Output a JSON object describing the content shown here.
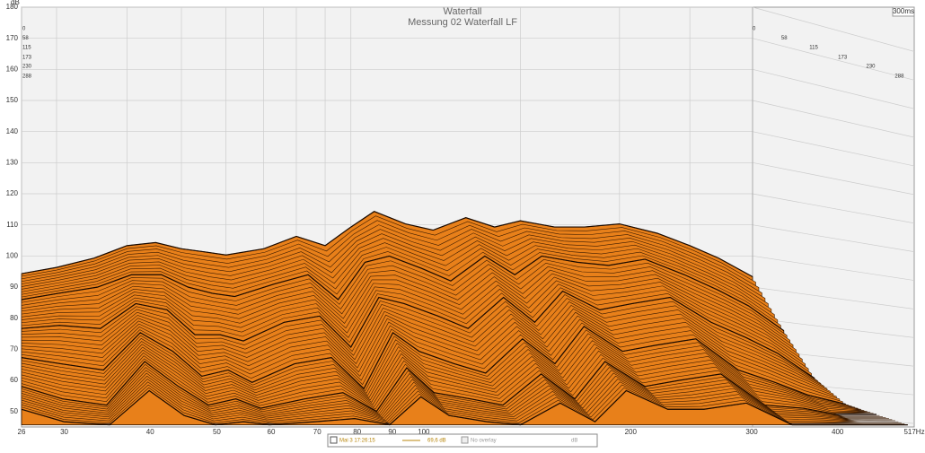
{
  "chart_data": {
    "type": "waterfall",
    "title": "Waterfall",
    "subtitle": "Messung 02 Waterfall LF",
    "y_label": "dB",
    "z_label": "300ms",
    "color": "#e8801a",
    "xscale": "log",
    "grid": true,
    "x": [
      26,
      30,
      35,
      40,
      45,
      50,
      55,
      60,
      70,
      80,
      90,
      100,
      110,
      125,
      140,
      160,
      180,
      200,
      230,
      260,
      300,
      350,
      400,
      450,
      517
    ],
    "z": [
      0,
      58,
      115,
      173,
      230,
      288
    ],
    "zlim": [
      0,
      300
    ],
    "series": [
      {
        "values": [
          77,
          79,
          82,
          86,
          87,
          85,
          84,
          83,
          85,
          89,
          86,
          92,
          97,
          93,
          91,
          95,
          92,
          94,
          92,
          92,
          93,
          90,
          86,
          82,
          76
        ]
      },
      {
        "values": [
          72,
          74,
          76,
          80,
          80,
          76,
          74,
          73,
          77,
          80,
          72,
          84,
          86,
          82,
          78,
          86,
          80,
          86,
          84,
          83,
          85,
          80,
          75,
          70,
          62
        ]
      },
      {
        "values": [
          66,
          67,
          66,
          74,
          72,
          64,
          64,
          62,
          68,
          70,
          60,
          76,
          74,
          70,
          66,
          76,
          68,
          78,
          72,
          74,
          76,
          68,
          63,
          58,
          50
        ]
      },
      {
        "values": [
          60,
          58,
          56,
          68,
          62,
          54,
          56,
          52,
          58,
          60,
          50,
          68,
          62,
          58,
          55,
          66,
          58,
          70,
          62,
          64,
          66,
          56,
          52,
          48,
          45
        ]
      },
      {
        "values": [
          54,
          50,
          48,
          62,
          54,
          48,
          50,
          47,
          50,
          52,
          46,
          60,
          52,
          50,
          48,
          58,
          50,
          62,
          54,
          56,
          58,
          48,
          47,
          45,
          45
        ]
      },
      {
        "values": [
          50,
          46,
          45,
          56,
          48,
          45,
          46,
          45,
          46,
          47,
          45,
          54,
          48,
          46,
          45,
          52,
          46,
          56,
          50,
          50,
          52,
          45,
          45,
          45,
          45
        ]
      }
    ],
    "xlim": [
      26,
      517
    ],
    "xticks": [
      26,
      30,
      40,
      50,
      60,
      70,
      80,
      90,
      100,
      200,
      300,
      400,
      {
        "value": 517,
        "label": "517Hz"
      }
    ],
    "ylim": [
      45,
      180
    ],
    "yticks": [
      50,
      60,
      70,
      80,
      90,
      100,
      110,
      120,
      130,
      140,
      150,
      160,
      170,
      180
    ],
    "legend": {
      "date": "Mai 3 17:26:15",
      "level": "69,6 dB",
      "overlay": "No overlay",
      "unit": "dB"
    }
  }
}
